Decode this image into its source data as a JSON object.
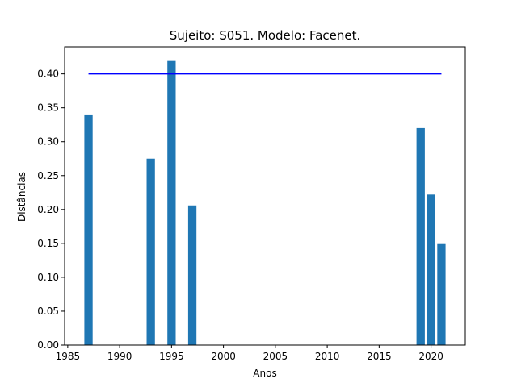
{
  "chart_data": {
    "type": "bar",
    "title": "Sujeito: S051. Modelo: Facenet.",
    "xlabel": "Anos",
    "ylabel": "Distâncias",
    "xlim": [
      1984.7,
      2023.3
    ],
    "ylim": [
      0,
      0.44
    ],
    "x_ticks": [
      1985,
      1990,
      1995,
      2000,
      2005,
      2010,
      2015,
      2020
    ],
    "y_ticks": [
      0.0,
      0.05,
      0.1,
      0.15,
      0.2,
      0.25,
      0.3,
      0.35,
      0.4
    ],
    "bar_width": 0.8,
    "bar_color": "#1f77b4",
    "grid": false,
    "x": [
      1987,
      1993,
      1995,
      1997,
      2019,
      2020,
      2021
    ],
    "values": [
      0.339,
      0.275,
      0.419,
      0.206,
      0.32,
      0.222,
      0.149
    ],
    "threshold_line": {
      "y": 0.4,
      "x_start": 1987,
      "x_end": 2021,
      "color": "#0000ff"
    }
  }
}
